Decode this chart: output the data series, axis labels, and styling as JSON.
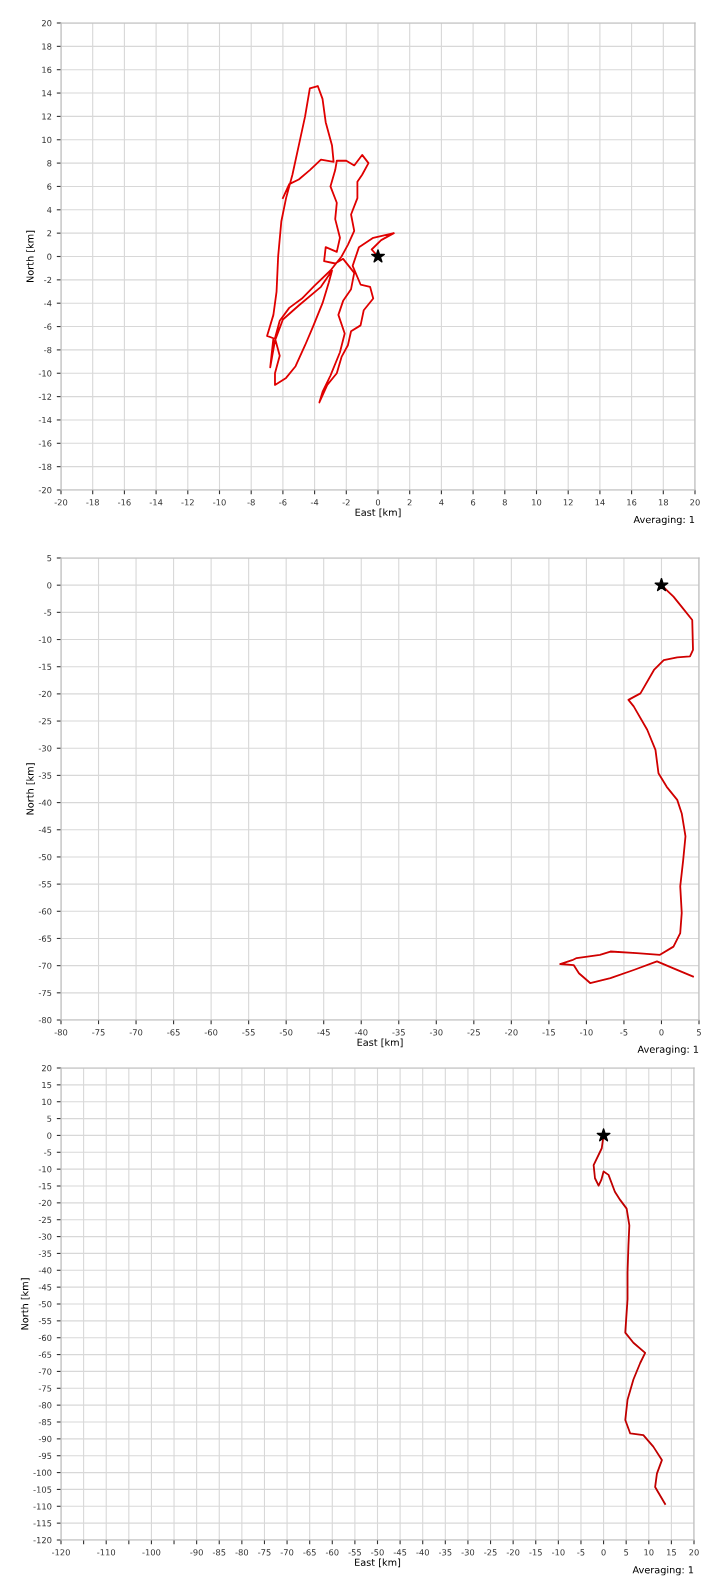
{
  "chart_data": [
    {
      "type": "line",
      "xlabel": "East [km]",
      "ylabel": "North [km]",
      "annotations": [
        "Averaging: 1"
      ],
      "grid": true,
      "marker": "none",
      "line_style": "solid",
      "xlim": [
        -20,
        20
      ],
      "ylim": [
        -20,
        20
      ],
      "xticks": [
        -20,
        -18,
        -16,
        -14,
        -12,
        -10,
        -8,
        -6,
        -4,
        -2,
        0,
        2,
        4,
        6,
        8,
        10,
        12,
        14,
        16,
        18,
        20
      ],
      "yticks": [
        -20,
        -18,
        -16,
        -14,
        -12,
        -10,
        -8,
        -6,
        -4,
        -2,
        0,
        2,
        4,
        6,
        8,
        10,
        12,
        14,
        16,
        18,
        20
      ],
      "series": [
        {
          "color": "#e00000",
          "x": [
            0,
            -0.4,
            0.2,
            1,
            -0.3,
            -1.2,
            -1.6,
            -1.1,
            -0.5,
            -0.3,
            -0.9,
            -1.1,
            -1.7,
            -1.9,
            -2.3,
            -2.6,
            -3.2,
            -3.7,
            -3.5,
            -3,
            -2.4,
            -2.1,
            -2.5,
            -2.2,
            -1.7,
            -1.5,
            -2.2,
            -2.7,
            -3.4,
            -3.3,
            -2.6,
            -2.4,
            -2.7,
            -2.6,
            -3,
            -2.7,
            -2.6,
            -2,
            -1.5,
            -1,
            -0.6,
            -1,
            -1.3,
            -1.3,
            -1.7,
            -1.5,
            -1.9,
            -2.3,
            -3,
            -4,
            -4.8,
            -5.6,
            -6.2,
            -6.5,
            -6.2,
            -6.5,
            -6.5,
            -5.8,
            -5.2,
            -4.6,
            -4.1,
            -3.5,
            -3.1,
            -2.9,
            -3.6,
            -5,
            -6,
            -6.5,
            -6.8,
            -6.6,
            -7,
            -6.6,
            -6.4,
            -6.3,
            -6.1,
            -5.8,
            -5.4,
            -5,
            -4.6,
            -4.3,
            -3.8,
            -3.5,
            -3.3,
            -2.9,
            -2.8,
            -3.6,
            -4.3,
            -5,
            -5.6,
            -6
          ],
          "values": [
            0,
            0.6,
            1.4,
            2,
            1.6,
            0.8,
            -0.8,
            -2.4,
            -2.6,
            -3.6,
            -4.6,
            -5.9,
            -6.4,
            -7.6,
            -8.6,
            -10,
            -11,
            -12.5,
            -11.6,
            -10.2,
            -8.2,
            -6.6,
            -5,
            -3.8,
            -2.8,
            -1.4,
            -0.2,
            -0.6,
            -0.4,
            0.8,
            0.4,
            1.6,
            3.2,
            4.6,
            6,
            7.4,
            8.2,
            8.2,
            7.8,
            8.7,
            8,
            7,
            6.4,
            5,
            3.6,
            2.2,
            1,
            0,
            -1.2,
            -2.5,
            -3.6,
            -4.4,
            -5.5,
            -7,
            -8.5,
            -10,
            -11,
            -10.4,
            -9.4,
            -7.6,
            -6,
            -4,
            -2.2,
            -1.2,
            -2.6,
            -4.2,
            -5.4,
            -7.2,
            -9.5,
            -7,
            -6.8,
            -5,
            -3,
            0,
            3,
            5,
            7,
            9.5,
            12,
            14.4,
            14.6,
            13.5,
            11.5,
            9.5,
            8.1,
            8.3,
            7.4,
            6.6,
            6.2,
            5
          ]
        },
        {
          "type": "scatter",
          "marker": "star",
          "color": "#000000",
          "x": [
            0
          ],
          "values": [
            0
          ]
        }
      ]
    },
    {
      "type": "line",
      "xlabel": "East [km]",
      "ylabel": "North [km]",
      "annotations": [
        "Averaging: 1"
      ],
      "grid": true,
      "marker": "none",
      "line_style": "solid",
      "xlim": [
        -80,
        5
      ],
      "ylim": [
        -80,
        5
      ],
      "xticks": [
        -80,
        -75,
        -70,
        -65,
        -60,
        -55,
        -50,
        -45,
        -40,
        -35,
        -30,
        -25,
        -20,
        -15,
        -10,
        -5,
        0,
        5
      ],
      "yticks": [
        -80,
        -75,
        -70,
        -65,
        -60,
        -55,
        -50,
        -45,
        -40,
        -35,
        -30,
        -25,
        -20,
        -15,
        -10,
        -5,
        0,
        5
      ],
      "series": [
        {
          "color": "#d00000",
          "x": [
            0,
            1.6,
            2.7,
            4.1,
            4.2,
            3.8,
            2.1,
            0.3,
            -1.0,
            -2.8,
            -4.4,
            -3.7,
            -1.9,
            -0.8,
            -0.4,
            0.7,
            2.1,
            2.7,
            3.2,
            2.9,
            2.5,
            2.7,
            2.5,
            1.6,
            -0.2,
            -3.3,
            -6.8,
            -8.2,
            -11.3,
            -11.9,
            -13.5,
            -11.7,
            -11.0,
            -9.5,
            -6.8,
            -3.7,
            -0.6,
            1.6,
            4.2
          ],
          "values": [
            0,
            -2.1,
            -4,
            -6.4,
            -11.9,
            -13.1,
            -13.3,
            -13.8,
            -15.6,
            -19.9,
            -21.1,
            -22.3,
            -26.6,
            -30.3,
            -34.6,
            -37.1,
            -39.5,
            -42,
            -46.2,
            -50.5,
            -55.4,
            -60.3,
            -64,
            -66.5,
            -68,
            -67.7,
            -67.4,
            -68,
            -68.6,
            -69,
            -69.7,
            -69.9,
            -71.4,
            -73.2,
            -72.3,
            -70.8,
            -69.2,
            -70.5,
            -72
          ]
        },
        {
          "type": "scatter",
          "marker": "star",
          "color": "#000000",
          "x": [
            0
          ],
          "values": [
            0
          ]
        }
      ]
    },
    {
      "type": "line",
      "xlabel": "East [km]",
      "ylabel": "North [km]",
      "annotations": [
        "Averaging: 1"
      ],
      "grid": true,
      "marker": "none",
      "line_style": "solid",
      "xlim": [
        -120,
        20
      ],
      "ylim": [
        -120,
        20
      ],
      "xticks": [
        -120,
        {
          "value": -115,
          "label": null
        },
        -110,
        {
          "value": -105,
          "label": null
        },
        -100,
        {
          "value": -95,
          "label": null
        },
        -90,
        -85,
        -80,
        -75,
        -70,
        -65,
        -60,
        -55,
        -50,
        -45,
        -40,
        -35,
        -30,
        -25,
        -20,
        -15,
        -10,
        -5,
        0,
        5,
        10,
        15,
        20
      ],
      "yticks": [
        -120,
        -115,
        -110,
        -105,
        -100,
        -95,
        -90,
        -85,
        -80,
        -75,
        -70,
        -65,
        -60,
        -55,
        -50,
        -45,
        -40,
        -35,
        -30,
        -25,
        -20,
        -15,
        -10,
        -5,
        0,
        5,
        10,
        15,
        20
      ],
      "series": [
        {
          "color": "#c00000",
          "x": [
            0,
            -0.4,
            -2.2,
            -1.9,
            -1.1,
            -0.5,
            0,
            1.1,
            2.5,
            3.7,
            5.1,
            5.7,
            5.5,
            5.3,
            5.3,
            5.0,
            4.8,
            6.6,
            9.2,
            8.1,
            6.6,
            5.3,
            4.8,
            5.9,
            8.8,
            11.0,
            12.9,
            11.8,
            11.4,
            13.6
          ],
          "values": [
            0,
            -3.8,
            -8.8,
            -12.7,
            -14.9,
            -13.2,
            -10.7,
            -11.7,
            -16.7,
            -19.2,
            -21.7,
            -26.7,
            -32.6,
            -40.6,
            -48.6,
            -54.5,
            -58.5,
            -61.5,
            -64.5,
            -67.5,
            -72.4,
            -78.4,
            -84.4,
            -88.4,
            -88.9,
            -92.3,
            -96.3,
            -100.3,
            -104.3,
            -109.3
          ]
        },
        {
          "type": "scatter",
          "marker": "star",
          "color": "#000000",
          "x": [
            0
          ],
          "values": [
            0
          ]
        }
      ]
    }
  ]
}
